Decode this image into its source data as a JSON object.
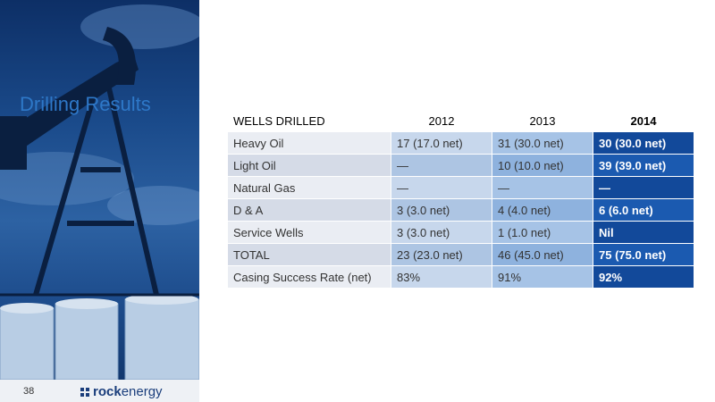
{
  "slide": {
    "title": "Drilling Results",
    "page_number": "38"
  },
  "logo": {
    "part1": "rock",
    "part2": "energy"
  },
  "table": {
    "headers": [
      "WELLS DRILLED",
      "2012",
      "2013",
      "2014"
    ],
    "rows": [
      [
        "Heavy Oil",
        "17 (17.0 net)",
        "31 (30.0 net)",
        "30 (30.0 net)"
      ],
      [
        "Light Oil",
        "—",
        "10 (10.0 net)",
        "39 (39.0 net)"
      ],
      [
        "Natural Gas",
        "—",
        "—",
        "—"
      ],
      [
        "D & A",
        "3 (3.0 net)",
        "4 (4.0 net)",
        "6 (6.0 net)"
      ],
      [
        "Service Wells",
        "3 (3.0 net)",
        "1 (1.0 net)",
        "Nil"
      ],
      [
        "TOTAL",
        "23 (23.0 net)",
        "46 (45.0 net)",
        "75 (75.0 net)"
      ],
      [
        "Casing Success Rate (net)",
        "83%",
        "91%",
        "92%"
      ]
    ]
  }
}
